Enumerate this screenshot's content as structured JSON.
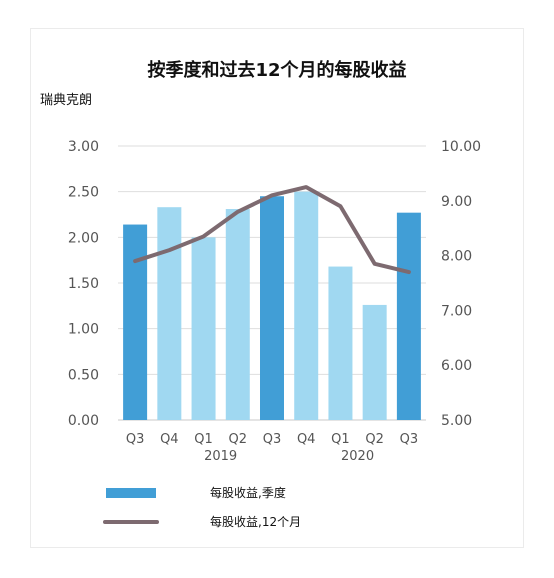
{
  "chart_data": {
    "type": "bar+line",
    "title": "按季度和过去12个月的每股收益",
    "unit_label": "瑞典克朗",
    "categories": [
      "Q3",
      "Q4",
      "Q1",
      "Q2",
      "Q3",
      "Q4",
      "Q1",
      "Q2",
      "Q3"
    ],
    "year_labels": [
      "2019",
      "2020"
    ],
    "y_left": {
      "ticks": [
        "0.00",
        "0.50",
        "1.00",
        "1.50",
        "2.00",
        "2.50",
        "3.00"
      ],
      "lim": [
        0,
        3
      ]
    },
    "y_right": {
      "ticks": [
        "5.00",
        "6.00",
        "7.00",
        "8.00",
        "9.00",
        "10.00"
      ],
      "lim": [
        5,
        10
      ]
    },
    "bars": {
      "name": "每股收益,季度",
      "values": [
        2.14,
        2.33,
        2.0,
        2.31,
        2.45,
        2.5,
        1.68,
        1.26,
        2.27
      ],
      "colors": [
        "#419ed6",
        "#a0d8f1",
        "#a0d8f1",
        "#a0d8f1",
        "#419ed6",
        "#a0d8f1",
        "#a0d8f1",
        "#a0d8f1",
        "#419ed6"
      ]
    },
    "line": {
      "name": "每股收益,12个月",
      "values": [
        7.9,
        8.1,
        8.35,
        8.8,
        9.1,
        9.25,
        8.9,
        7.85,
        7.7
      ],
      "color": "#7d6a70"
    },
    "grid": true
  }
}
